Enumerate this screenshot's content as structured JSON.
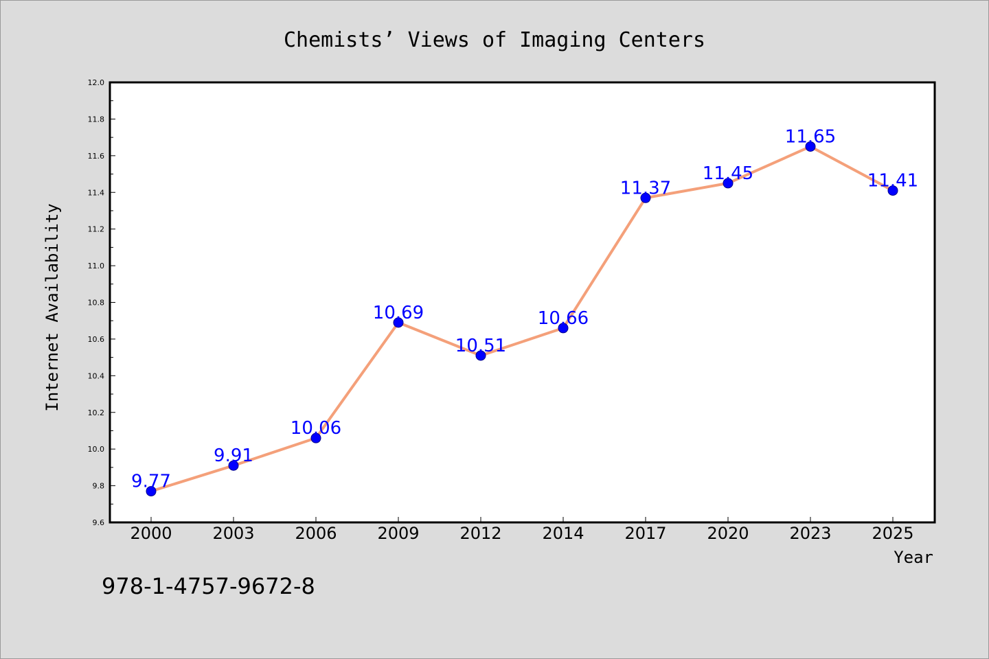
{
  "chart_data": {
    "type": "line",
    "title": "Chemists’  Views of Imaging Centers",
    "xlabel": "Year",
    "ylabel": "Internet Availability",
    "categories": [
      "2000",
      "2003",
      "2006",
      "2009",
      "2012",
      "2014",
      "2017",
      "2020",
      "2023",
      "2025"
    ],
    "series": [
      {
        "values": [
          9.77,
          9.91,
          10.06,
          10.69,
          10.51,
          10.66,
          11.37,
          11.45,
          11.65,
          11.41
        ],
        "line_color": "#f4a07a",
        "marker_color": "#0000ff"
      }
    ],
    "data_labels": [
      "9.77",
      "9.91",
      "10.06",
      "10.69",
      "10.51",
      "10.66",
      "11.37",
      "11.45",
      "11.65",
      "11.41"
    ],
    "ylim": [
      9.6,
      12.0
    ],
    "yticks": [
      "9.6",
      "9.8",
      "10.0",
      "10.2",
      "10.4",
      "10.6",
      "10.8",
      "11.0",
      "11.2",
      "11.4",
      "11.6",
      "11.8",
      "12.0"
    ],
    "grid": false,
    "legend": "none"
  },
  "annotation": {
    "isbn": "978-1-4757-9672-8"
  }
}
